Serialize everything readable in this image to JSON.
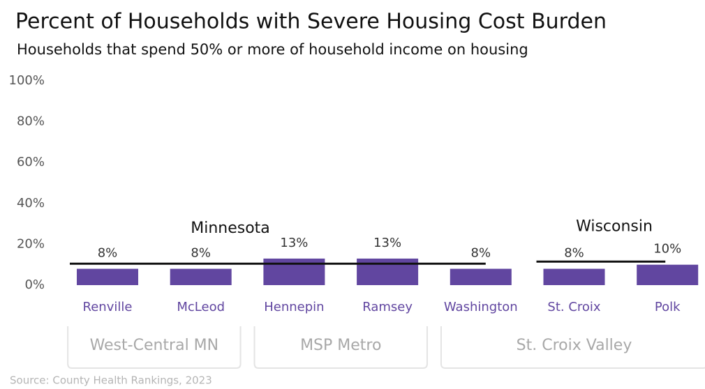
{
  "chart_data": {
    "type": "bar",
    "title": "Percent of Households with Severe Housing Cost Burden",
    "subtitle": "Households that spend 50% or more of household income on housing",
    "categories": [
      "Renville",
      "McLeod",
      "Hennepin",
      "Ramsey",
      "Washington",
      "St. Croix",
      "Polk"
    ],
    "values": [
      8,
      8,
      13,
      13,
      8,
      8,
      10
    ],
    "value_labels": [
      "8%",
      "8%",
      "13%",
      "13%",
      "8%",
      "8%",
      "10%"
    ],
    "color": "#6146a0",
    "ylim": [
      0,
      100
    ],
    "yticks": [
      {
        "value": 0,
        "label": "0%"
      },
      {
        "value": 20,
        "label": "20%"
      },
      {
        "value": 40,
        "label": "40%"
      },
      {
        "value": 60,
        "label": "60%"
      },
      {
        "value": 80,
        "label": "80%"
      },
      {
        "value": 100,
        "label": "100%"
      }
    ],
    "grid": false,
    "reference_lines": [
      {
        "label": "Minnesota",
        "value": 10.5,
        "from": 0,
        "to": 4
      },
      {
        "label": "Wisconsin",
        "value": 11.5,
        "from": 5,
        "to": 6
      }
    ],
    "groups": [
      {
        "label": "West-Central MN",
        "from": 0,
        "to": 1
      },
      {
        "label": "MSP Metro",
        "from": 2,
        "to": 3
      },
      {
        "label": "St. Croix Valley",
        "from": 4,
        "to": 6
      }
    ],
    "source": "Source: County Health Rankings, 2023"
  }
}
